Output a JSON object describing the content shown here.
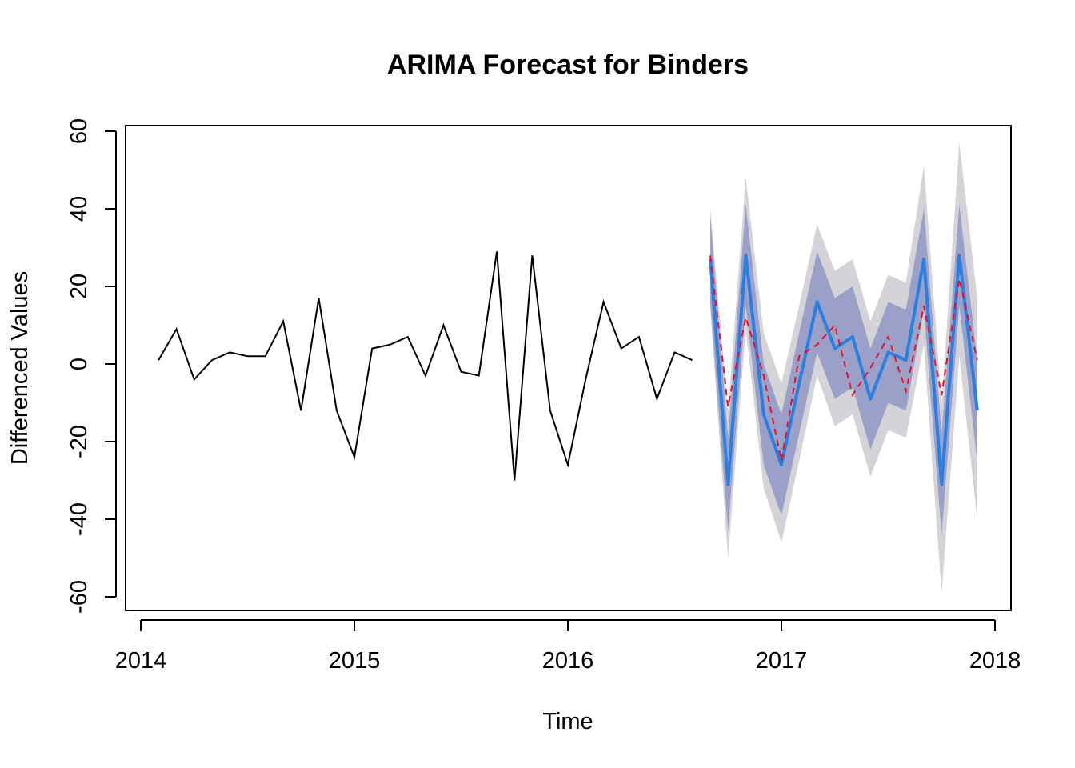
{
  "chart_data": {
    "type": "line",
    "title": "ARIMA Forecast for Binders",
    "xlabel": "Time",
    "ylabel": "Differenced Values",
    "xlim": [
      2014.0,
      2018.0
    ],
    "ylim": [
      -65,
      61
    ],
    "x_ticks": [
      2014,
      2015,
      2016,
      2017,
      2018
    ],
    "x_tick_labels": [
      "2014",
      "2015",
      "2016",
      "2017",
      "2018"
    ],
    "y_ticks": [
      -60,
      -40,
      -20,
      0,
      20,
      40,
      60
    ],
    "y_tick_labels": [
      "-60",
      "-40",
      "-20",
      "0",
      "20",
      "40",
      "60"
    ],
    "grid": false,
    "legend": "none",
    "observed": {
      "color": "#000000",
      "x": [
        2014.083,
        2014.167,
        2014.25,
        2014.333,
        2014.417,
        2014.5,
        2014.583,
        2014.667,
        2014.75,
        2014.833,
        2014.917,
        2015.0,
        2015.083,
        2015.167,
        2015.25,
        2015.333,
        2015.417,
        2015.5,
        2015.583,
        2015.667,
        2015.75,
        2015.833,
        2015.917,
        2016.0,
        2016.083,
        2016.167,
        2016.25,
        2016.333,
        2016.417,
        2016.5,
        2016.583
      ],
      "y": [
        1,
        9,
        -4,
        1,
        3,
        2,
        2,
        11,
        -12,
        17,
        -12,
        -24,
        4,
        5,
        7,
        -3,
        10,
        -2,
        -3,
        29,
        -30,
        28,
        -12,
        -26,
        -4,
        16,
        4,
        7,
        -9,
        3,
        1
      ]
    },
    "forecast": {
      "color": "#2b7fe0",
      "x": [
        2016.667,
        2016.75,
        2016.833,
        2016.917,
        2017.0,
        2017.083,
        2017.167,
        2017.25,
        2017.333,
        2017.417,
        2017.5,
        2017.583,
        2017.667,
        2017.75,
        2017.833,
        2017.917
      ],
      "mean": [
        27,
        -31,
        28,
        -13,
        -26,
        -5,
        16,
        4,
        7,
        -9,
        3,
        1,
        27,
        -31,
        28,
        -12
      ],
      "lo80": [
        16,
        -43,
        15,
        -26,
        -39,
        -18,
        3,
        -9,
        -6,
        -22,
        -10,
        -12,
        14,
        -44,
        15,
        -25
      ],
      "hi80": [
        38,
        -19,
        41,
        0,
        -13,
        8,
        29,
        17,
        20,
        4,
        16,
        14,
        40,
        -18,
        41,
        1
      ],
      "lo95": [
        14,
        -50,
        9,
        -32,
        -46,
        -25,
        -3,
        -16,
        -13,
        -29,
        -17,
        -19,
        5,
        -59,
        2,
        -40
      ],
      "hi95": [
        40,
        -12,
        48,
        8,
        -5,
        15,
        36,
        24,
        27,
        11,
        23,
        21,
        51,
        -10,
        57,
        17
      ],
      "band80_color": "#9aa0c8",
      "band95_color": "#d3d3d8"
    },
    "actual_dashed": {
      "color": "#e8102a",
      "x": [
        2016.667,
        2016.75,
        2016.833,
        2016.917,
        2017.0,
        2017.083,
        2017.167,
        2017.25,
        2017.333,
        2017.417,
        2017.5,
        2017.583,
        2017.667,
        2017.75,
        2017.833,
        2017.917
      ],
      "y": [
        28,
        -11,
        12,
        -3,
        -25,
        2,
        5,
        10,
        -8,
        -1,
        7,
        -7,
        15,
        -8,
        22,
        1
      ]
    }
  }
}
